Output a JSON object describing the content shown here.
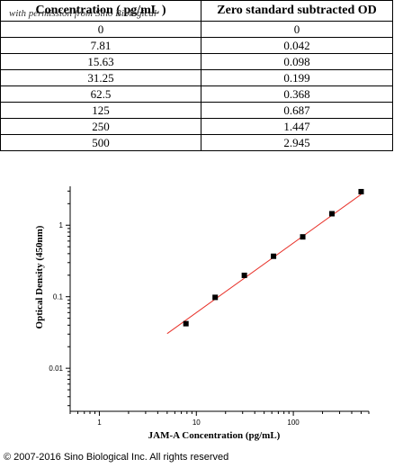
{
  "table": {
    "headers": [
      "Concentration ( pg/mL )",
      "Zero standard subtracted OD"
    ],
    "watermark": "with permission from Sino Biological",
    "rows": [
      [
        "0",
        "0"
      ],
      [
        "7.81",
        "0.042"
      ],
      [
        "15.63",
        "0.098"
      ],
      [
        "31.25",
        "0.199"
      ],
      [
        "62.5",
        "0.368"
      ],
      [
        "125",
        "0.687"
      ],
      [
        "250",
        "1.447"
      ],
      [
        "500",
        "2.945"
      ]
    ]
  },
  "chart_data": {
    "type": "scatter",
    "xlabel": "JAM-A Concentration (pg/mL)",
    "ylabel": "Optical Density (450nm)",
    "x_scale": "log",
    "y_scale": "log",
    "xlim": [
      0.5,
      600
    ],
    "ylim": [
      0.0025,
      3.5
    ],
    "x_ticks": [
      1,
      10,
      100
    ],
    "y_ticks": [
      0.01,
      0.1,
      1
    ],
    "x_tick_labels": [
      "1",
      "10",
      "100"
    ],
    "y_tick_labels": [
      "0.01",
      "0.1",
      "1"
    ],
    "grid": false,
    "series": [
      {
        "x": [
          7.81,
          15.63,
          31.25,
          62.5,
          125,
          250,
          500
        ],
        "y": [
          0.042,
          0.098,
          0.199,
          0.368,
          0.687,
          1.447,
          2.945
        ],
        "marker": "square",
        "color": "#000000"
      }
    ],
    "fit_line": {
      "x": [
        5,
        500
      ],
      "y": [
        0.0305,
        2.7
      ],
      "color": "#e8322a"
    }
  },
  "footer": {
    "copyright": "© 2007-2016 Sino Biological Inc. All rights reserved"
  }
}
